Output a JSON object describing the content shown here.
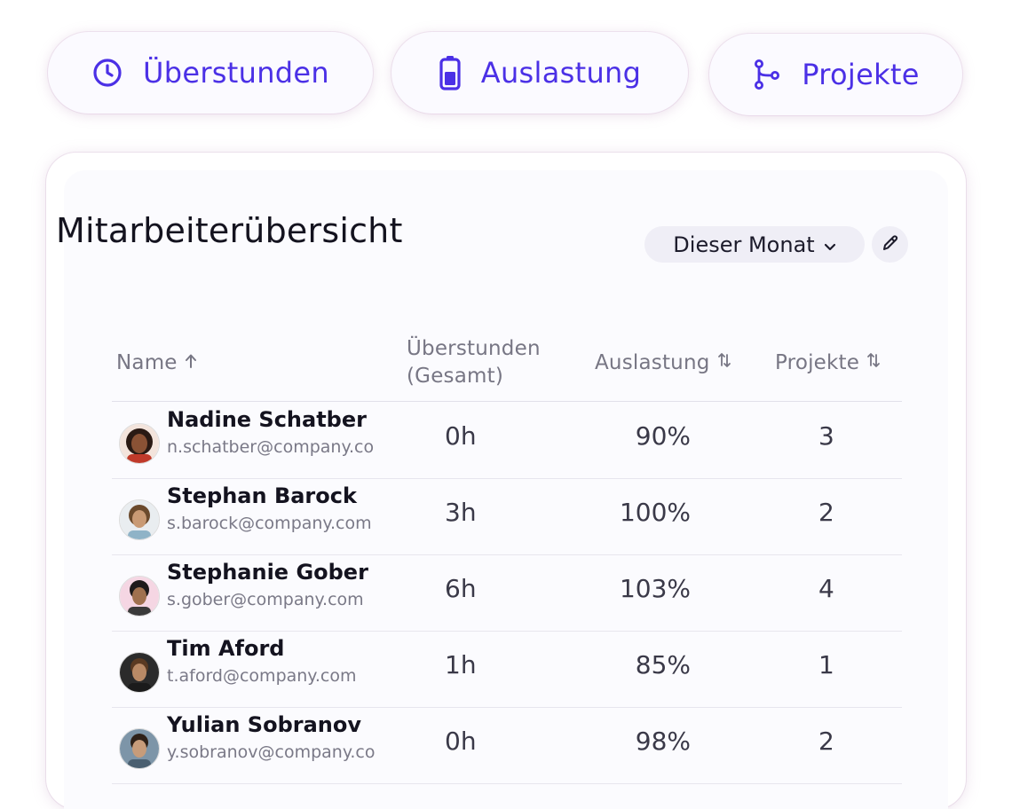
{
  "tabs": [
    {
      "label": "Überstunden",
      "icon": "clock-icon"
    },
    {
      "label": "Auslastung",
      "icon": "battery-icon"
    },
    {
      "label": "Projekte",
      "icon": "branch-icon"
    }
  ],
  "card": {
    "title": "Mitarbeiterübersicht",
    "period_select": "Dieser Monat"
  },
  "table": {
    "columns": {
      "name": "Name",
      "overtime_line1": "Überstunden",
      "overtime_line2": "(Gesamt)",
      "utilization": "Auslastung",
      "projects": "Projekte"
    },
    "rows": [
      {
        "name": "Nadine Schatber",
        "email": "n.schatber@company.com",
        "overtime": "0h",
        "utilization": "90%",
        "projects": "3"
      },
      {
        "name": "Stephan Barock",
        "email": "s.barock@company.com",
        "overtime": "3h",
        "utilization": "100%",
        "projects": "2"
      },
      {
        "name": "Stephanie Gober",
        "email": "s.gober@company.com",
        "overtime": "6h",
        "utilization": "103%",
        "projects": "4"
      },
      {
        "name": "Tim Aford",
        "email": "t.aford@company.com",
        "overtime": "1h",
        "utilization": "85%",
        "projects": "1"
      },
      {
        "name": "Yulian Sobranov",
        "email": "y.sobranov@company.com",
        "overtime": "0h",
        "utilization": "98%",
        "projects": "2"
      }
    ]
  },
  "colors": {
    "accent": "#4b30e6",
    "text": "#14131f",
    "muted": "#777684"
  }
}
